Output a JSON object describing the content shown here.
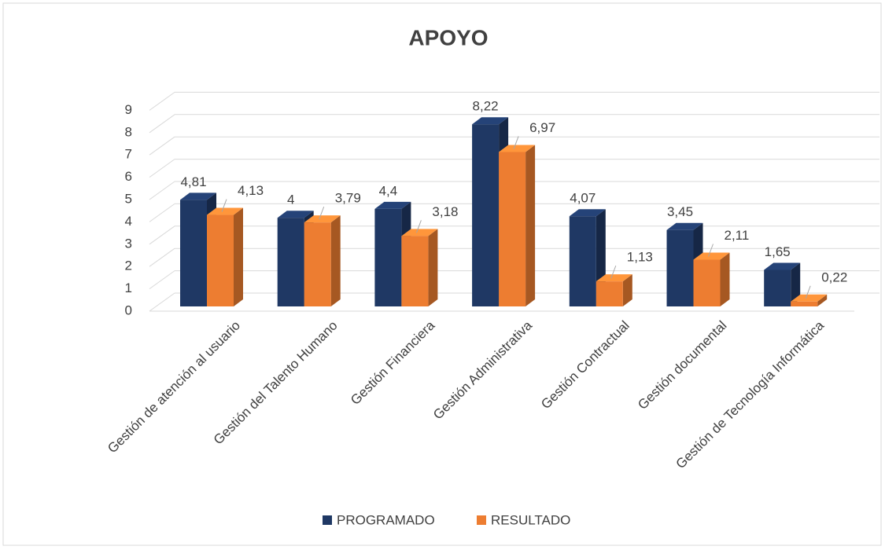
{
  "chart_data": {
    "type": "bar",
    "title": "APOYO",
    "categories": [
      "Gestión de atención al usuario",
      "Gestión del Talento Humano",
      "Gestión Financiera",
      "Gestión Administrativa",
      "Gestión Contractual",
      "Gestión documental",
      "Gestión de Tecnología Informática"
    ],
    "series": [
      {
        "name": "PROGRAMADO",
        "color": "#1f3864",
        "values": [
          4.81,
          4,
          4.4,
          8.22,
          4.07,
          3.45,
          1.65
        ],
        "value_labels": [
          "4,81",
          "4",
          "4,4",
          "8,22",
          "4,07",
          "3,45",
          "1,65"
        ]
      },
      {
        "name": "RESULTADO",
        "color": "#ed7d31",
        "values": [
          4.13,
          3.79,
          3.18,
          6.97,
          1.13,
          2.11,
          0.22
        ],
        "value_labels": [
          "4,13",
          "3,79",
          "3,18",
          "6,97",
          "1,13",
          "2,11",
          "0,22"
        ]
      }
    ],
    "ylim": [
      0,
      9
    ],
    "yticks": [
      0,
      1,
      2,
      3,
      4,
      5,
      6,
      7,
      8,
      9
    ],
    "grid": true,
    "legend": "bottom"
  }
}
